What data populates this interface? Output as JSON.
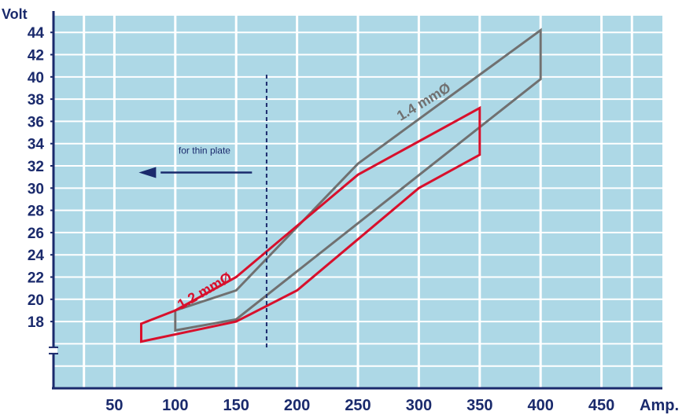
{
  "chart_data": {
    "type": "area",
    "xlabel": "Amp.",
    "ylabel": "Volt",
    "xlim": [
      0,
      450
    ],
    "ylim": [
      12,
      44
    ],
    "x_ticks": [
      50,
      100,
      150,
      200,
      250,
      300,
      350,
      400,
      450
    ],
    "y_ticks": [
      18,
      20,
      22,
      24,
      26,
      28,
      30,
      32,
      34,
      36,
      38,
      40,
      42,
      44
    ],
    "y_axis_break": true,
    "grid": true,
    "colors": {
      "plot_bg": "#add8e6",
      "grid": "#ffffff",
      "axis": "#1a2a6c",
      "series_1_2": "#d8102c",
      "series_1_4": "#707070",
      "annotation": "#1a2a6c"
    },
    "series": [
      {
        "name": "1.2 mmØ",
        "color": "#d8102c",
        "points": [
          [
            72,
            17.8
          ],
          [
            100,
            19
          ],
          [
            150,
            22
          ],
          [
            250,
            31.2
          ],
          [
            350,
            37.2
          ],
          [
            350,
            33
          ],
          [
            300,
            30
          ],
          [
            200,
            20.8
          ],
          [
            150,
            18
          ],
          [
            72,
            16.2
          ]
        ]
      },
      {
        "name": "1.4 mmØ",
        "color": "#707070",
        "points": [
          [
            100,
            19
          ],
          [
            150,
            20.8
          ],
          [
            250,
            32.2
          ],
          [
            400,
            44.2
          ],
          [
            400,
            39.8
          ],
          [
            150,
            18.2
          ],
          [
            100,
            17.2
          ]
        ]
      }
    ],
    "annotation": {
      "text": "for thin plate",
      "x": 175,
      "arrow": "left"
    }
  }
}
